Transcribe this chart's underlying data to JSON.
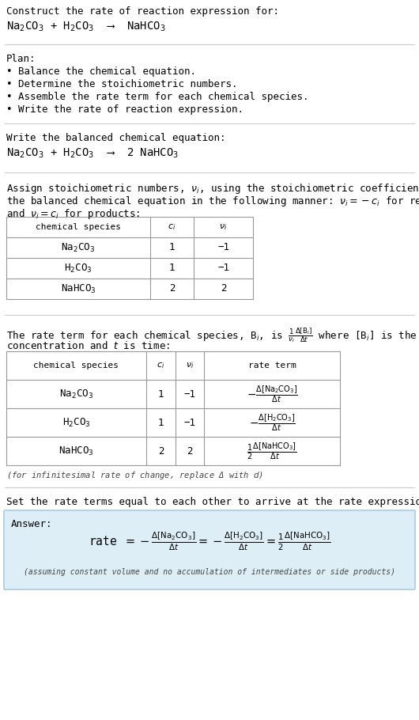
{
  "bg_color": "#ffffff",
  "text_color": "#000000",
  "answer_bg": "#ddeef6",
  "title_line1": "Construct the rate of reaction expression for:",
  "title_line2": "Na$_2$CO$_3$ + H$_2$CO$_3$  ⟶  NaHCO$_3$",
  "plan_header": "Plan:",
  "plan_items": [
    "• Balance the chemical equation.",
    "• Determine the stoichiometric numbers.",
    "• Assemble the rate term for each chemical species.",
    "• Write the rate of reaction expression."
  ],
  "balanced_header": "Write the balanced chemical equation:",
  "balanced_eq": "Na$_2$CO$_3$ + H$_2$CO$_3$  ⟶  2 NaHCO$_3$",
  "assign_text1": "Assign stoichiometric numbers, $\\nu_i$, using the stoichiometric coefficients, $c_i$, from",
  "assign_text2": "the balanced chemical equation in the following manner: $\\nu_i = -c_i$ for reactants",
  "assign_text3": "and $\\nu_i = c_i$ for products:",
  "table1_headers": [
    "chemical species",
    "$c_i$",
    "$\\nu_i$"
  ],
  "table1_rows": [
    [
      "Na$_2$CO$_3$",
      "1",
      "−1"
    ],
    [
      "H$_2$CO$_3$",
      "1",
      "−1"
    ],
    [
      "NaHCO$_3$",
      "2",
      "2"
    ]
  ],
  "rate_text1": "The rate term for each chemical species, B$_i$, is $\\frac{1}{\\nu_i}\\frac{\\Delta[\\mathrm{B}_i]}{\\Delta t}$ where [B$_i$] is the amount",
  "rate_text2": "concentration and $t$ is time:",
  "table2_headers": [
    "chemical species",
    "$c_i$",
    "$\\nu_i$",
    "rate term"
  ],
  "table2_rows": [
    [
      "Na$_2$CO$_3$",
      "1",
      "−1",
      "$-\\frac{\\Delta[\\mathrm{Na_2CO_3}]}{\\Delta t}$"
    ],
    [
      "H$_2$CO$_3$",
      "1",
      "−1",
      "$-\\frac{\\Delta[\\mathrm{H_2CO_3}]}{\\Delta t}$"
    ],
    [
      "NaHCO$_3$",
      "2",
      "2",
      "$\\frac{1}{2}\\frac{\\Delta[\\mathrm{NaHCO_3}]}{\\Delta t}$"
    ]
  ],
  "infinitesimal_note": "(for infinitesimal rate of change, replace Δ with $d$)",
  "set_equal_text": "Set the rate terms equal to each other to arrive at the rate expression:",
  "answer_label": "Answer:",
  "answer_note": "(assuming constant volume and no accumulation of intermediates or side products)"
}
